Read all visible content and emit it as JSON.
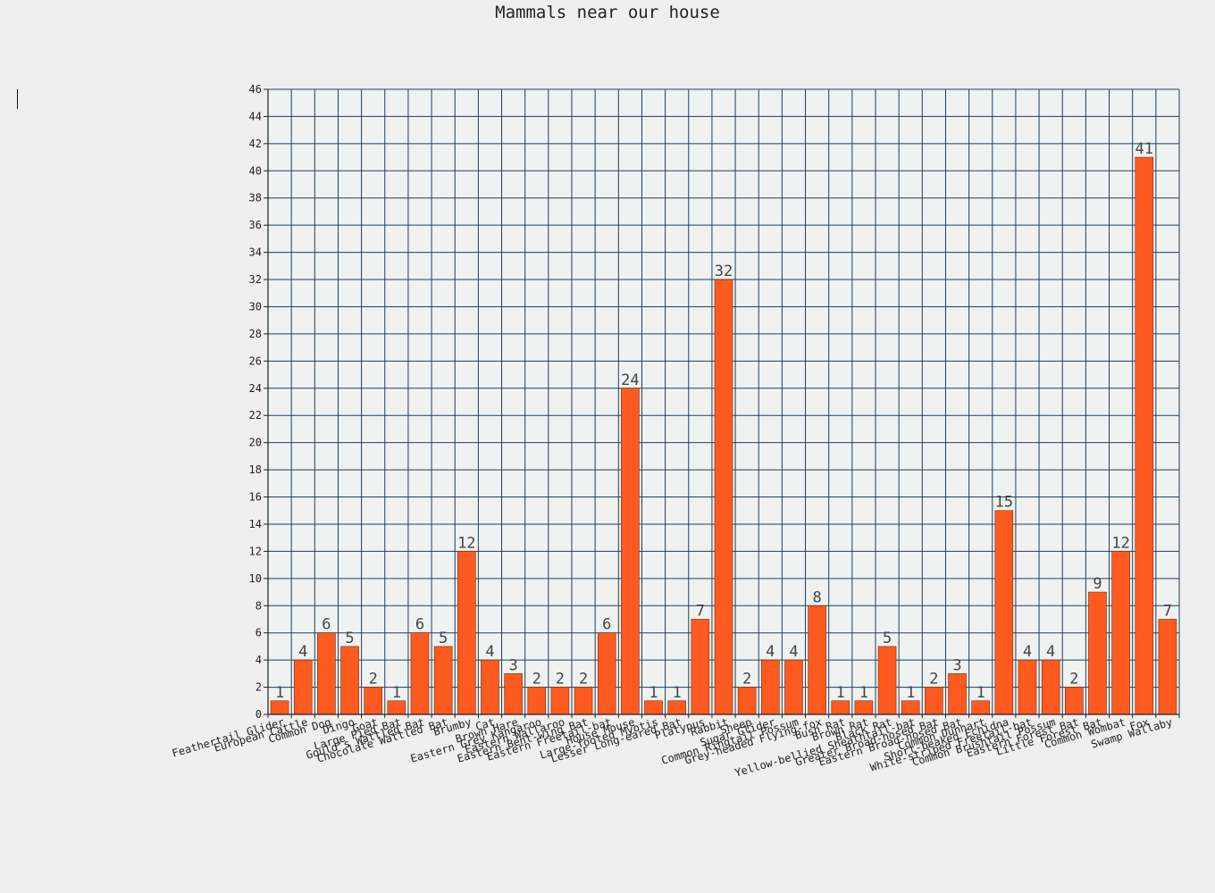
{
  "window": {
    "background": "#efefef"
  },
  "chart_data": {
    "type": "bar",
    "title": "Mammals near our house",
    "xlabel": "",
    "ylabel": "",
    "ylim": [
      0,
      46
    ],
    "ytick_step": 2,
    "grid": true,
    "legend": "none",
    "data_labels": true,
    "colors": {
      "bar": "#ff5a1f",
      "bar_edge": "#7a2a0a",
      "grid": "#1e3f5e",
      "plot_bg": "#eef2f0",
      "axis": "#222222",
      "label": "#444444"
    },
    "categories": [
      "Feathertail Glider",
      "European Cattle",
      "Common Dog",
      "Dingo",
      "Goat",
      "Large Pied Bat",
      "Gould's Wattled Bat",
      "Chocolate Wattled Bat",
      "Brumby",
      "Cat",
      "Brown Hare",
      "Eastern Grey Kangaroo",
      "Eastern Wallaroo",
      "Eastern Bent-wing Bat",
      "Eastern Freetail-bat",
      "House Mouse",
      "Large-footed Myotis",
      "Lesser Long-eared Bat",
      "Platypus",
      "Rabbit",
      "Sheep",
      "Sugar Glider",
      "Common Ringtail Possum",
      "Grey-headed Flying-fox",
      "Bush Rat",
      "Brown Rat",
      "Black Rat",
      "Yellow-bellied Sheathtail-bat",
      "Greater Broad-nosed Bat",
      "Eastern Broad-nosed Bat",
      "Common Dunnart",
      "Short-beaked Echidna",
      "White-striped Freetail-bat",
      "Common Brushtail Possum",
      "Eastern Forest Bat",
      "Little Forest Bat",
      "Common Wombat",
      "Fox",
      "Swamp Wallaby"
    ],
    "values": [
      1,
      4,
      6,
      5,
      2,
      1,
      6,
      5,
      12,
      4,
      3,
      2,
      2,
      2,
      6,
      24,
      1,
      1,
      7,
      32,
      2,
      4,
      4,
      8,
      1,
      1,
      5,
      1,
      2,
      3,
      1,
      15,
      4,
      4,
      2,
      9,
      12,
      41,
      7
    ]
  }
}
